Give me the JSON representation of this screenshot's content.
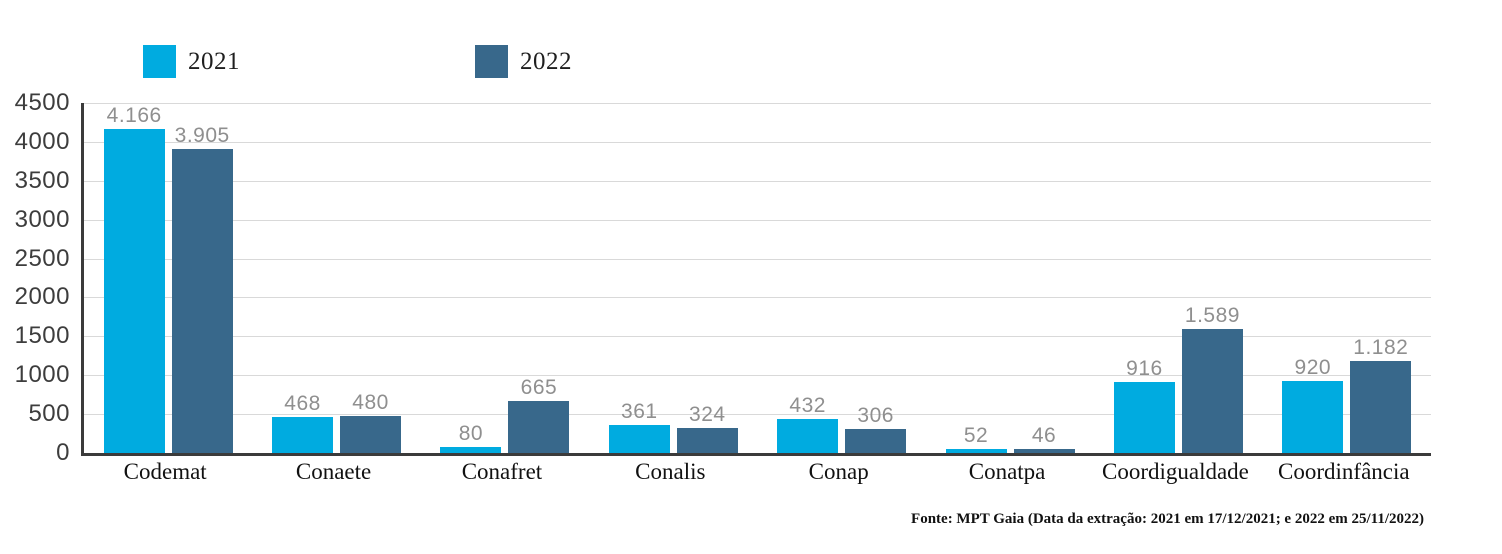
{
  "chart_data": {
    "type": "bar",
    "categories": [
      "Codemat",
      "Conaete",
      "Conafret",
      "Conalis",
      "Conap",
      "Conatpa",
      "Coordigualdade",
      "Coordinfância"
    ],
    "series": [
      {
        "name": "2021",
        "color": "#00ABE0",
        "values": [
          4166,
          468,
          80,
          361,
          432,
          52,
          916,
          920
        ],
        "labels": [
          "4.166",
          "468",
          "80",
          "361",
          "432",
          "52",
          "916",
          "920"
        ]
      },
      {
        "name": "2022",
        "color": "#38688B",
        "values": [
          3905,
          480,
          665,
          324,
          306,
          46,
          1589,
          1182
        ],
        "labels": [
          "3.905",
          "480",
          "665",
          "324",
          "306",
          "46",
          "1.589",
          "1.182"
        ]
      }
    ],
    "title": "",
    "xlabel": "",
    "ylabel": "",
    "ylim": [
      0,
      4500
    ],
    "ytick_step": 500,
    "yticks": [
      "0",
      "500",
      "1000",
      "1500",
      "2000",
      "2500",
      "3000",
      "3500",
      "4000",
      "4500"
    ],
    "grid": true,
    "legend_position": "top-left"
  },
  "legend": {
    "items": [
      {
        "label": "2021",
        "color": "#00ABE0"
      },
      {
        "label": "2022",
        "color": "#38688B"
      }
    ]
  },
  "footer": {
    "source": "Fonte: MPT Gaia (Data da extração: 2021 em 17/12/2021; e 2022 em 25/11/2022)"
  },
  "colors": {
    "grid": "#D9D9D9",
    "axis": "#3B3B3B",
    "data_label": "#8F8F8F",
    "tick_label": "#3D3D3D",
    "category_label": "#111111"
  }
}
